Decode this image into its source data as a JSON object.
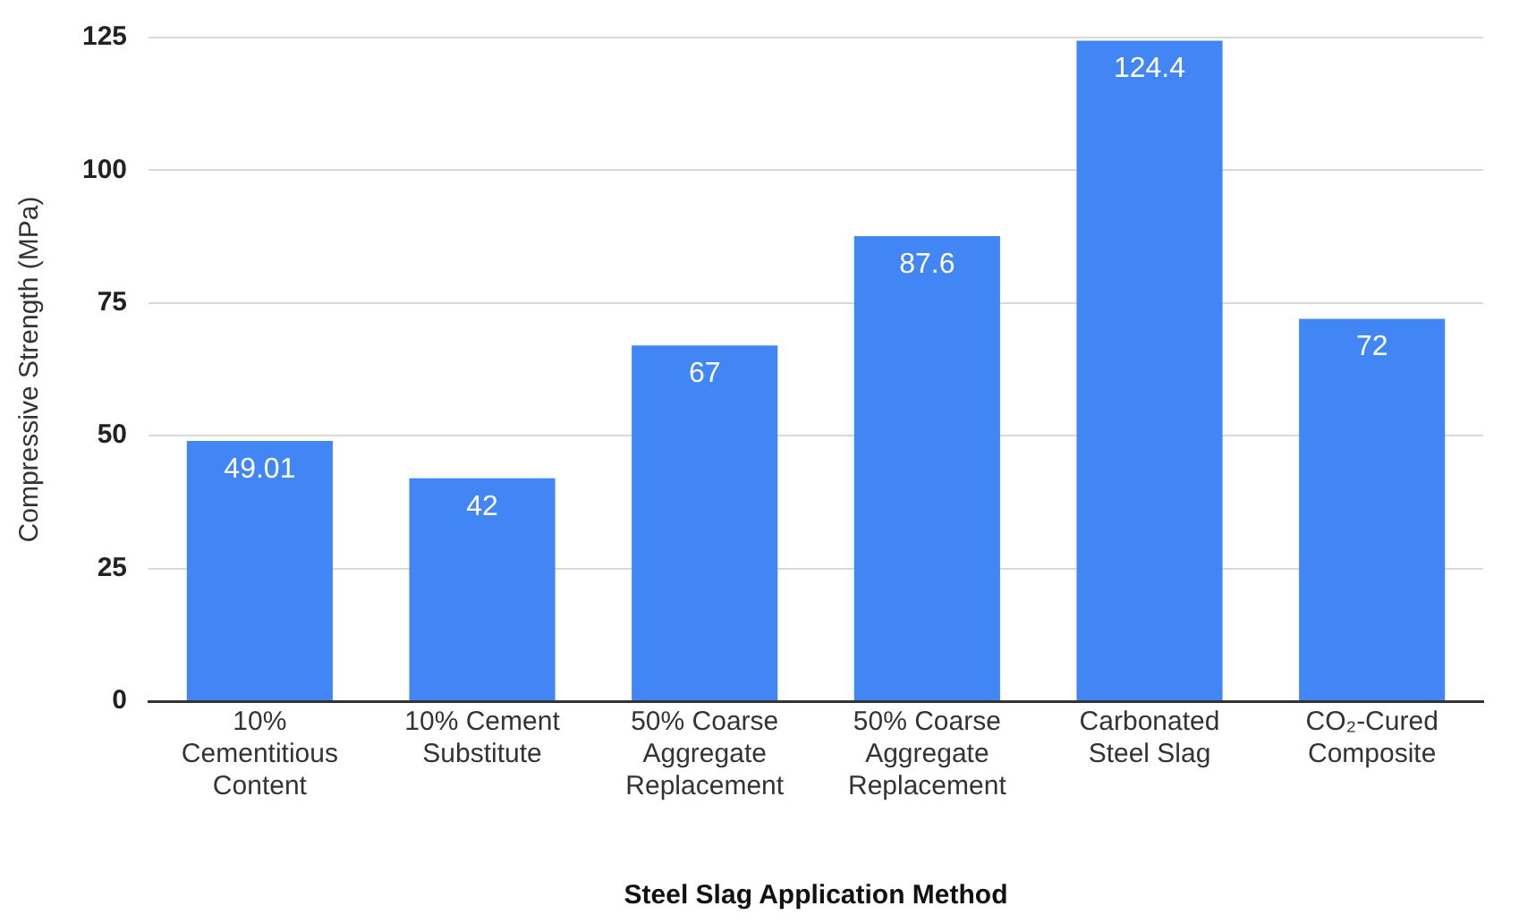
{
  "chart_data": {
    "type": "bar",
    "xlabel": "Steel Slag Application Method",
    "ylabel": "Compressive Strength (MPa)",
    "categories": [
      "10% Cementitious Content",
      "10% Cement Substitute",
      "50% Coarse Aggregate Replacement",
      "50% Coarse Aggregate Replacement",
      "Carbonated Steel Slag",
      "CO₂-Cured Composite"
    ],
    "values": [
      49.01,
      42,
      67,
      87.6,
      124.4,
      72
    ],
    "color": "#4285f4",
    "ylim": [
      0,
      125
    ],
    "yticks": [
      0,
      25,
      50,
      75,
      100,
      125
    ],
    "grid": "y",
    "legend": false,
    "data_labels": true
  }
}
